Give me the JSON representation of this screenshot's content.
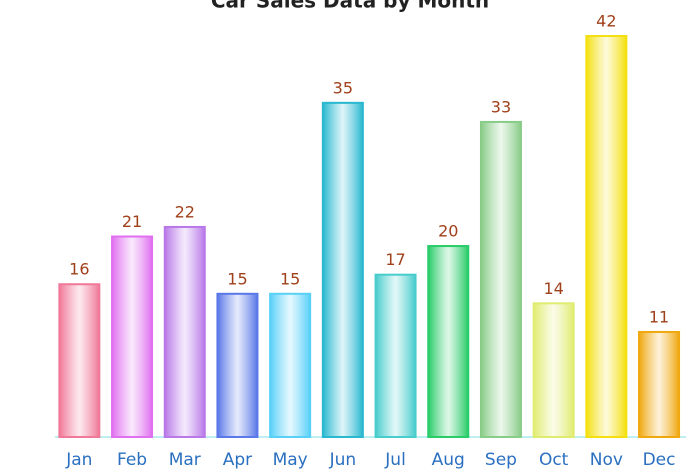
{
  "chart_data": {
    "type": "bar",
    "title": "Car Sales Data by Month",
    "categories": [
      "Jan",
      "Feb",
      "Mar",
      "Apr",
      "May",
      "Jun",
      "Jul",
      "Aug",
      "Sep",
      "Oct",
      "Nov",
      "Dec"
    ],
    "values": [
      16,
      21,
      22,
      15,
      15,
      35,
      17,
      20,
      33,
      14,
      42,
      11
    ],
    "colors": [
      "#f07898",
      "#e070f0",
      "#b878e8",
      "#5a78e8",
      "#58d0f8",
      "#28b8d0",
      "#48cccc",
      "#28cc68",
      "#88cc88",
      "#e0ec70",
      "#f4e010",
      "#f0a810"
    ],
    "ylim": [
      0,
      42
    ]
  }
}
